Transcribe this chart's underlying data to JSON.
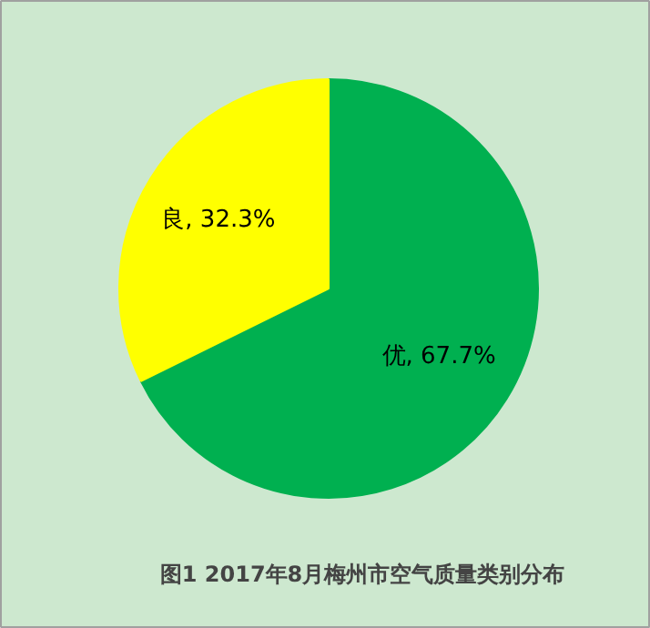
{
  "chart_data": {
    "type": "pie",
    "title": "图1 2017年8月梅州市空气质量类别分布",
    "categories": [
      "优",
      "良"
    ],
    "values": [
      67.7,
      32.3
    ],
    "colors": [
      "#00b050",
      "#ffff00"
    ],
    "value_labels": [
      "67.7%",
      "32.3%"
    ]
  }
}
